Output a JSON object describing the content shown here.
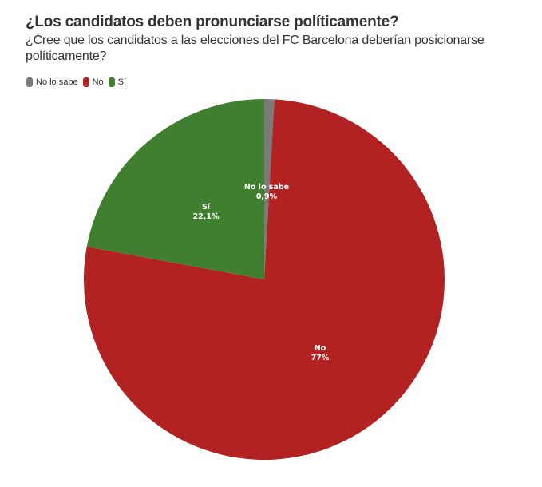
{
  "header": {
    "title": "¿Los candidatos deben pronunciarse políticamente?",
    "subtitle": "¿Cree que los candidatos a las elecciones del FC Barcelona deberían posicionarse políticamente?"
  },
  "legend": {
    "items": [
      {
        "label": "No lo sabe",
        "color": "#7a7a7a"
      },
      {
        "label": "No",
        "color": "#b22222"
      },
      {
        "label": "Sí",
        "color": "#3f7f2f"
      }
    ]
  },
  "slice_labels": {
    "no_lo_sabe": {
      "name": "No lo sabe",
      "value": "0,9%"
    },
    "no": {
      "name": "No",
      "value": "77%"
    },
    "si": {
      "name": "Sí",
      "value": "22,1%"
    }
  },
  "chart_data": {
    "type": "pie",
    "title": "¿Los candidatos deben pronunciarse políticamente?",
    "subtitle": "¿Cree que los candidatos a las elecciones del FC Barcelona deberían posicionarse políticamente?",
    "categories": [
      "No lo sabe",
      "No",
      "Sí"
    ],
    "values": [
      0.9,
      77,
      22.1
    ],
    "unit": "%",
    "colors": [
      "#7a7a7a",
      "#b22222",
      "#3f7f2f"
    ],
    "legend_position": "top-left",
    "start_angle": "top, clockwise"
  }
}
